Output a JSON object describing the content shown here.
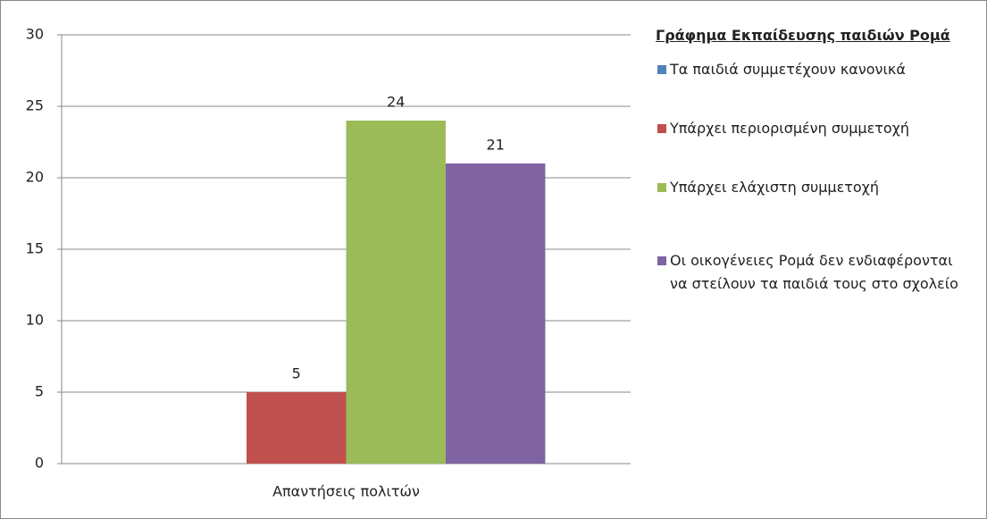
{
  "chart_data": {
    "type": "bar",
    "legend_title": "Γράφημα Εκπαίδευσης παιδιών Ρομά",
    "categories": [
      "Απαντήσεις πολιτών"
    ],
    "series": [
      {
        "name": "Τα παιδιά συμμετέχουν κανονικά",
        "color": "#4f81bd",
        "values": [
          0
        ],
        "value_labels": [
          null
        ]
      },
      {
        "name": "Υπάρχει περιορισμένη συμμετοχή",
        "color": "#c0504d",
        "values": [
          5
        ]
      },
      {
        "name": "Υπάρχει ελάχιστη συμμετοχή",
        "color": "#9bbb59",
        "values": [
          24
        ]
      },
      {
        "name": "Οι οικογένειες Ρομά δεν ενδιαφέρονται να στείλουν τα παιδιά τους στο σχολείο",
        "color": "#8064a2",
        "values": [
          21
        ]
      }
    ],
    "ylim": [
      0,
      30
    ],
    "yticks": [
      0,
      5,
      10,
      15,
      20,
      25,
      30
    ],
    "grid": true,
    "legend": "right"
  }
}
